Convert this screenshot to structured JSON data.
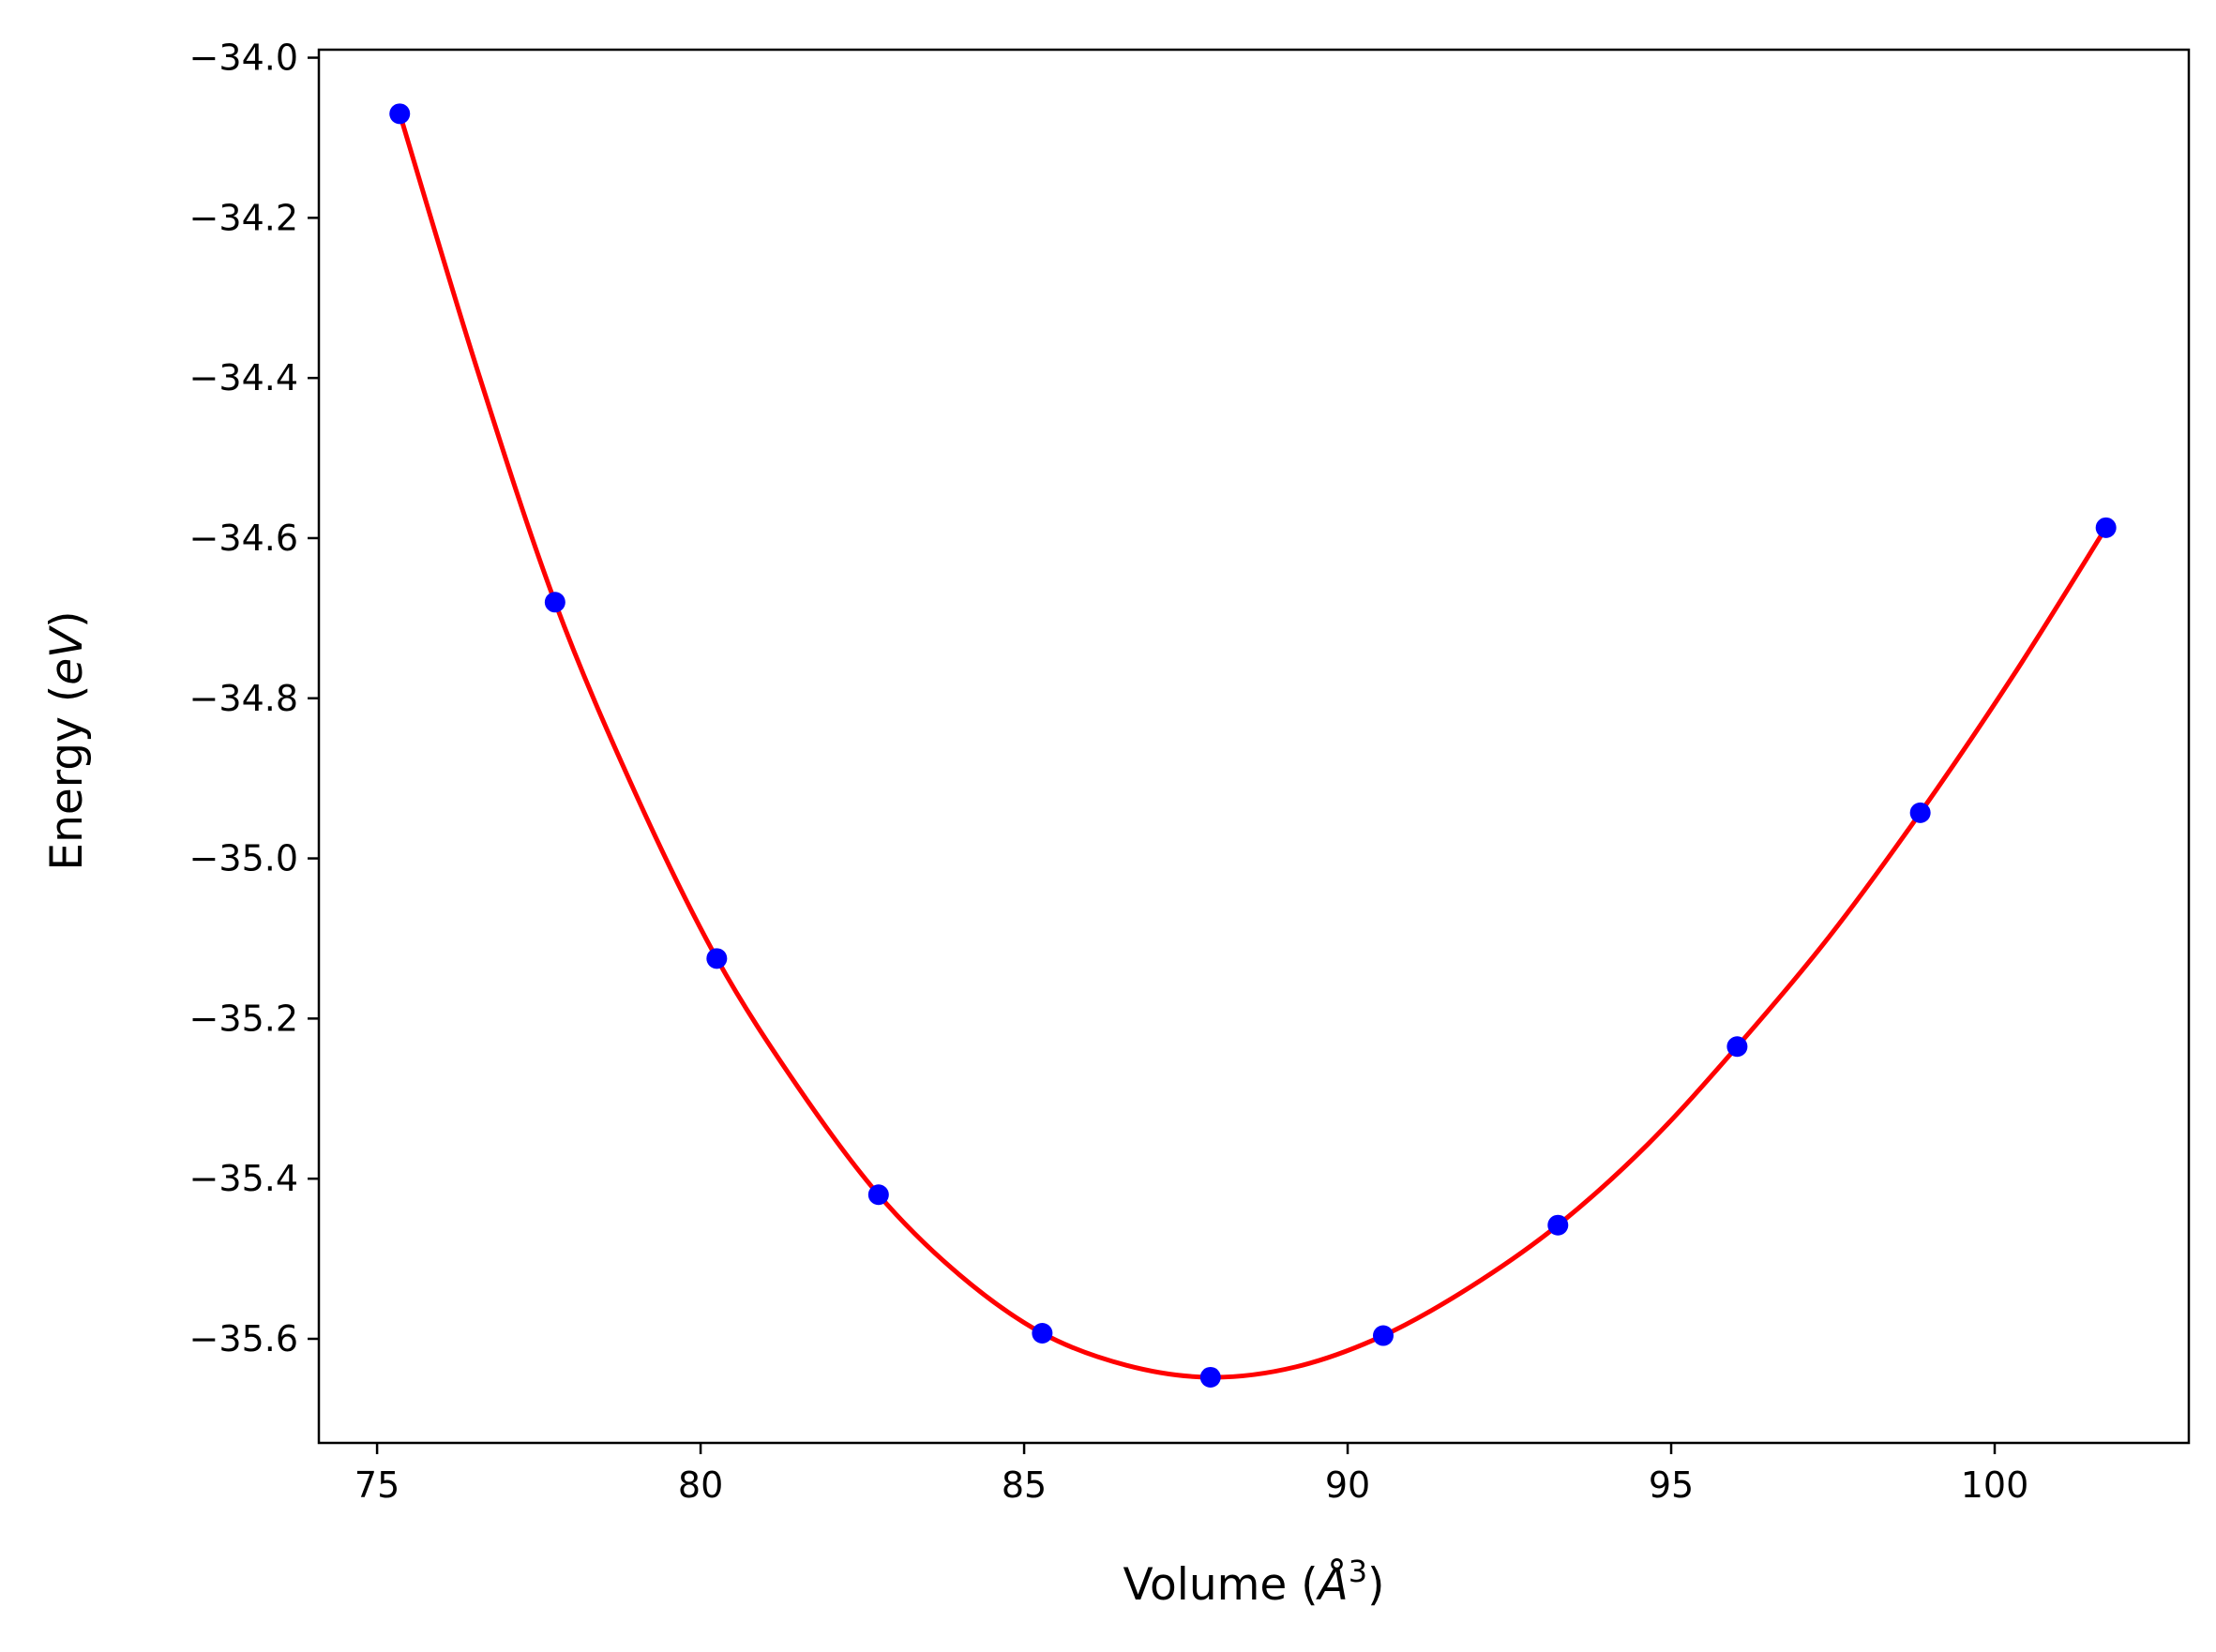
{
  "chart_data": {
    "type": "scatter",
    "title": "",
    "xlabel": "Volume",
    "xlabel_unit": "Å",
    "xlabel_unit_exponent": "3",
    "ylabel": "Energy",
    "ylabel_unit": "eV",
    "xlim": [
      74.1,
      103.0
    ],
    "ylim": [
      -35.73,
      -33.99
    ],
    "xticks": [
      75,
      80,
      85,
      90,
      95,
      100
    ],
    "yticks": [
      -34.0,
      -34.2,
      -34.4,
      -34.6,
      -34.8,
      -35.0,
      -35.2,
      -35.4,
      -35.6
    ],
    "xtick_labels": [
      "75",
      "80",
      "85",
      "90",
      "95",
      "100"
    ],
    "ytick_labels": [
      "−34.0",
      "−34.2",
      "−34.4",
      "−34.6",
      "−34.8",
      "−35.0",
      "−35.2",
      "−35.4",
      "−35.6"
    ],
    "grid": false,
    "legend": "none",
    "series": [
      {
        "kind": "scatter",
        "color": "#0000ff",
        "x": [
          75.35,
          77.75,
          80.25,
          82.75,
          85.28,
          87.88,
          90.55,
          93.25,
          96.02,
          98.85,
          101.72
        ],
        "y": [
          -34.07,
          -34.68,
          -35.125,
          -35.42,
          -35.593,
          -35.648,
          -35.596,
          -35.458,
          -35.235,
          -34.943,
          -34.587
        ]
      },
      {
        "kind": "line",
        "color": "#ff0000",
        "x": [
          75.35,
          76.55,
          77.75,
          79.0,
          80.25,
          81.5,
          82.75,
          84.0,
          85.28,
          86.58,
          87.88,
          89.2,
          90.55,
          91.9,
          93.25,
          94.64,
          96.02,
          97.44,
          98.85,
          100.3,
          101.72
        ],
        "y": [
          -34.07,
          -34.39,
          -34.68,
          -34.92,
          -35.125,
          -35.285,
          -35.42,
          -35.52,
          -35.593,
          -35.633,
          -35.648,
          -35.635,
          -35.596,
          -35.535,
          -35.458,
          -35.357,
          -35.235,
          -35.098,
          -34.943,
          -34.77,
          -34.587
        ]
      }
    ]
  }
}
